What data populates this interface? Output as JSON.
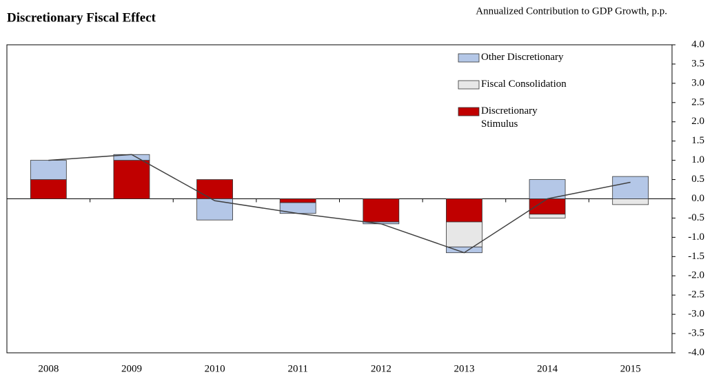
{
  "chart_data": {
    "type": "stacked-bar-line",
    "title": "Discretionary Fiscal Effect",
    "subtitle": "Annualized Contribution to GDP Growth, p.p.",
    "categories": [
      "2008",
      "2009",
      "2010",
      "2011",
      "2012",
      "2013",
      "2014",
      "2015"
    ],
    "series": [
      {
        "name": "Other Discretionary",
        "color": "#b4c7e7",
        "values": [
          0.5,
          0.15,
          -0.55,
          -0.28,
          -0.05,
          -0.15,
          0.5,
          0.58
        ]
      },
      {
        "name": "Fiscal Consolidation",
        "color": "#e7e7e7",
        "values": [
          0,
          0,
          0,
          0,
          0,
          -0.65,
          -0.1,
          -0.15
        ]
      },
      {
        "name": "Discretionary Stimulus",
        "color": "#c00000",
        "values": [
          0.5,
          1.0,
          0.5,
          -0.1,
          -0.6,
          -0.6,
          -0.4,
          0
        ]
      },
      {
        "type": "line",
        "color": "#404040",
        "values": [
          1.0,
          1.15,
          -0.05,
          -0.38,
          -0.65,
          -1.4,
          0,
          0.43
        ]
      }
    ],
    "ylim": [
      -4,
      4
    ],
    "yticks": [
      {
        "value": -4,
        "label": "-4.0"
      },
      -3.5,
      {
        "value": -3,
        "label": "-3.0"
      },
      -2.5,
      {
        "value": -2,
        "label": "-2.0"
      },
      -1.5,
      {
        "value": -1,
        "label": "-1.0"
      },
      -0.5,
      {
        "value": 0,
        "label": "0.0"
      },
      0.5,
      {
        "value": 1,
        "label": "1.0"
      },
      1.5,
      {
        "value": 2,
        "label": "2.0"
      },
      2.5,
      {
        "value": 3,
        "label": "3.0"
      },
      3.5,
      {
        "value": 4,
        "label": "4.0"
      }
    ],
    "grid": false,
    "legend": "top-right"
  }
}
